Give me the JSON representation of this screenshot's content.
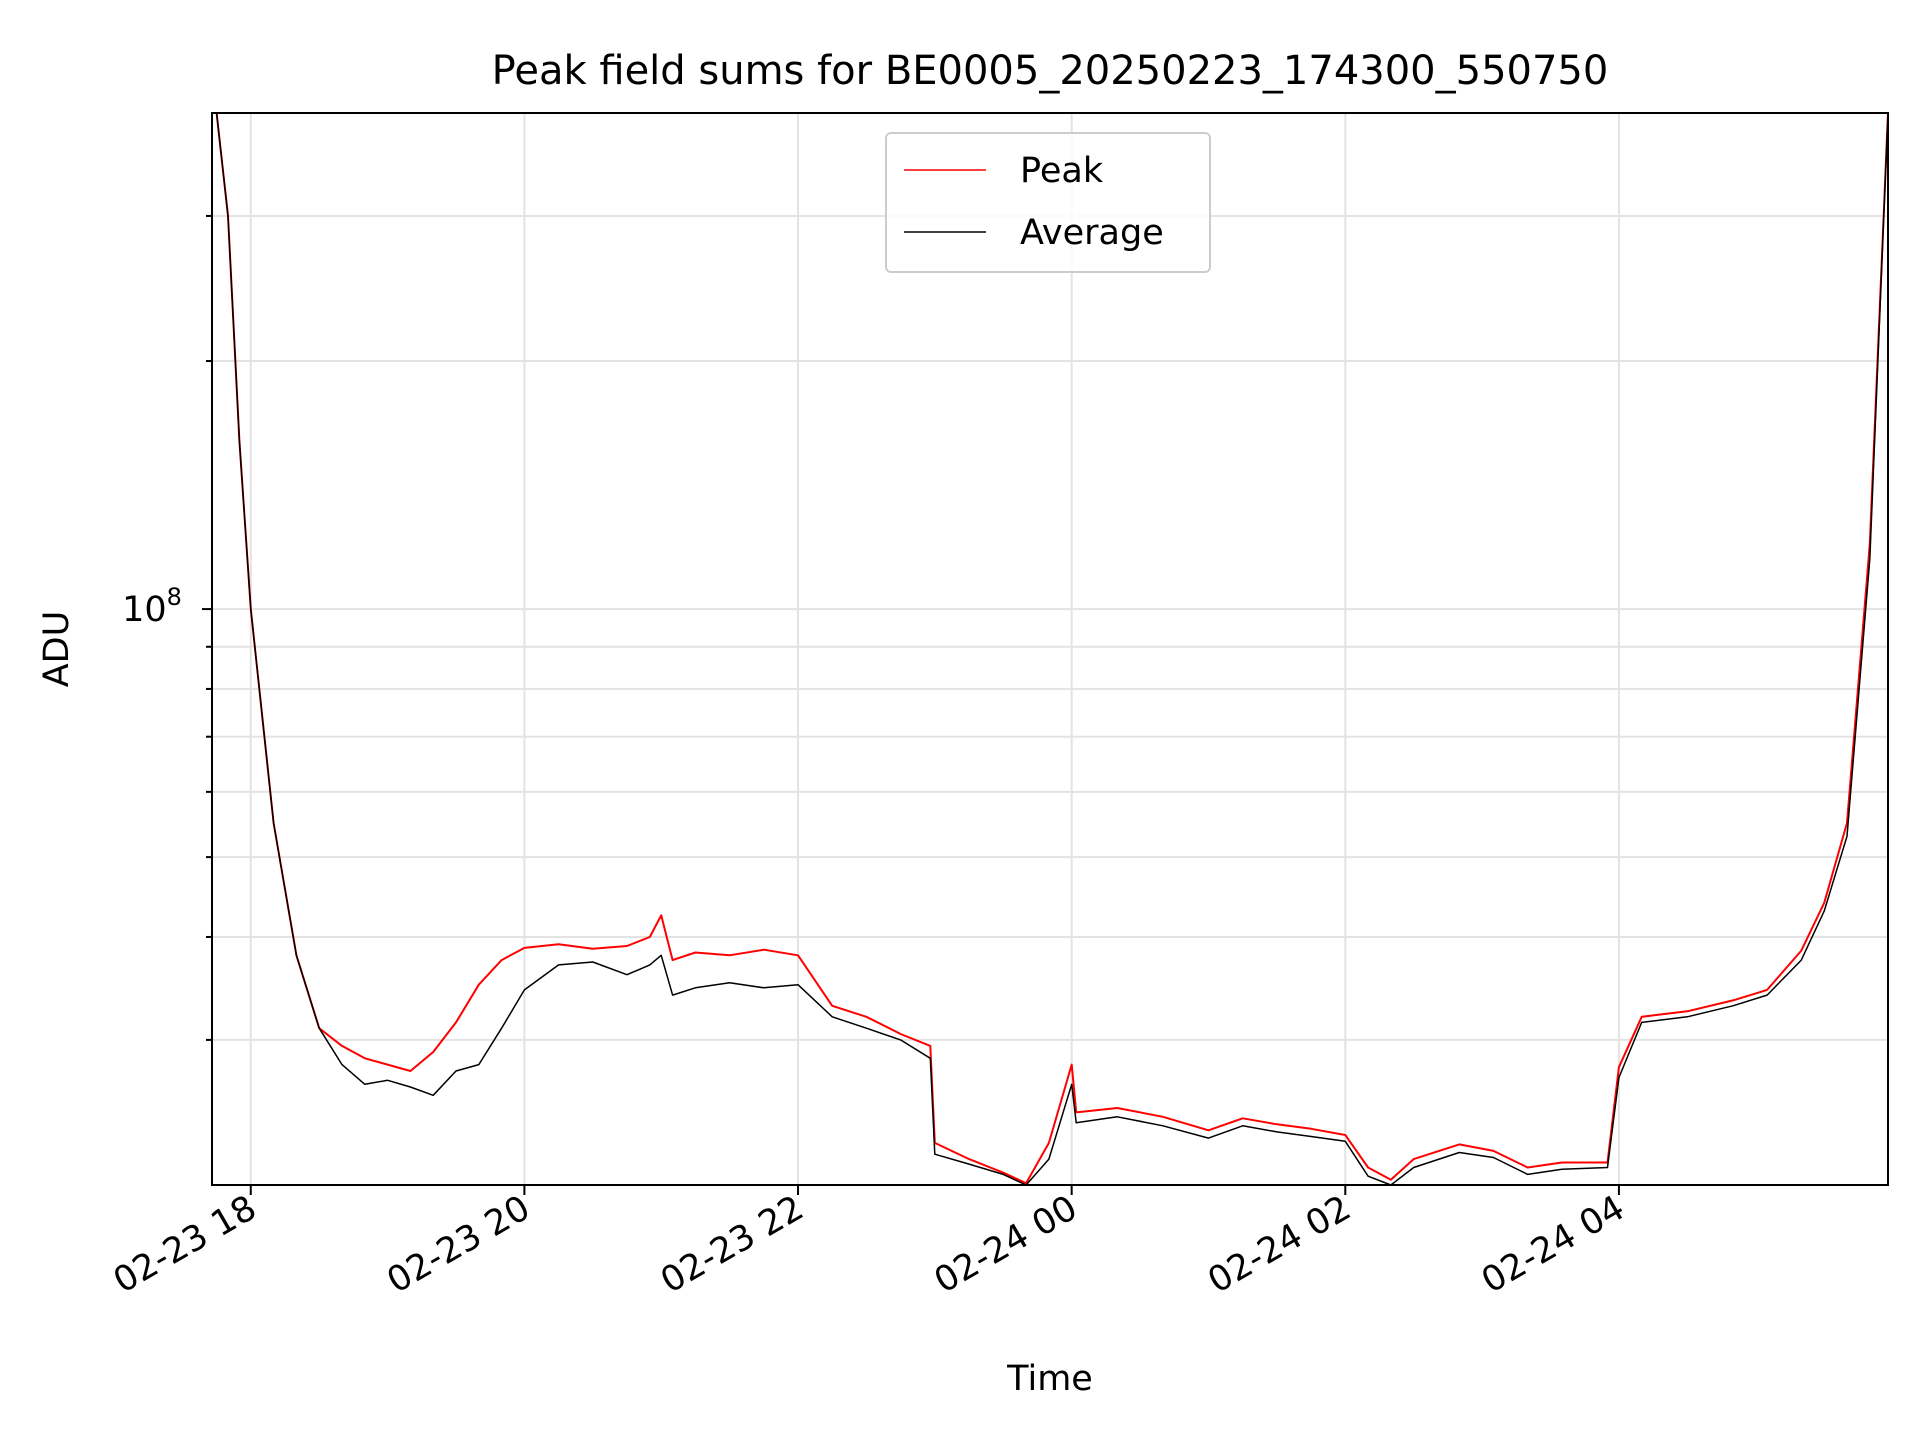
{
  "chart_data": {
    "type": "line",
    "title": "Peak field sums for BE0005_20250223_174300_550750",
    "xlabel": "Time",
    "ylabel": "ADU",
    "xlim": [
      "2025-02-23 17:43",
      "2025-02-24 05:58"
    ],
    "ylim": [
      20000000,
      400000000
    ],
    "y_scale": "log",
    "grid": true,
    "legend_position": "top-center",
    "x_tick_labels": [
      {
        "label": "02-23 18",
        "t": "2025-02-23 18:00"
      },
      {
        "label": "02-23 20",
        "t": "2025-02-23 20:00"
      },
      {
        "label": "02-23 22",
        "t": "2025-02-23 22:00"
      },
      {
        "label": "02-24 00",
        "t": "2025-02-24 00:00"
      },
      {
        "label": "02-24 02",
        "t": "2025-02-24 02:00"
      },
      {
        "label": "02-24 04",
        "t": "2025-02-24 04:00"
      }
    ],
    "y_major_ticks": [
      {
        "value": 100000000,
        "base": "10",
        "exp": "8"
      }
    ],
    "y_minor_ticks": [
      30000000,
      40000000,
      50000000,
      60000000,
      70000000,
      80000000,
      90000000,
      200000000,
      300000000
    ],
    "series": [
      {
        "name": "Peak",
        "color": "#ff0000",
        "x": [
          "2025-02-23 17:43",
          "2025-02-23 17:45",
          "2025-02-23 17:50",
          "2025-02-23 17:55",
          "2025-02-23 18:00",
          "2025-02-23 18:10",
          "2025-02-23 18:20",
          "2025-02-23 18:30",
          "2025-02-23 18:40",
          "2025-02-23 18:50",
          "2025-02-23 19:00",
          "2025-02-23 19:10",
          "2025-02-23 19:20",
          "2025-02-23 19:30",
          "2025-02-23 19:40",
          "2025-02-23 19:50",
          "2025-02-23 20:00",
          "2025-02-23 20:15",
          "2025-02-23 20:30",
          "2025-02-23 20:45",
          "2025-02-23 20:55",
          "2025-02-23 21:00",
          "2025-02-23 21:05",
          "2025-02-23 21:15",
          "2025-02-23 21:30",
          "2025-02-23 21:45",
          "2025-02-23 22:00",
          "2025-02-23 22:15",
          "2025-02-23 22:30",
          "2025-02-23 22:45",
          "2025-02-23 22:58",
          "2025-02-23 23:00",
          "2025-02-23 23:15",
          "2025-02-23 23:30",
          "2025-02-23 23:40",
          "2025-02-23 23:50",
          "2025-02-24 00:00",
          "2025-02-24 00:02",
          "2025-02-24 00:20",
          "2025-02-24 00:40",
          "2025-02-24 01:00",
          "2025-02-24 01:15",
          "2025-02-24 01:30",
          "2025-02-24 01:45",
          "2025-02-24 02:00",
          "2025-02-24 02:10",
          "2025-02-24 02:20",
          "2025-02-24 02:30",
          "2025-02-24 02:50",
          "2025-02-24 03:05",
          "2025-02-24 03:20",
          "2025-02-24 03:35",
          "2025-02-24 03:55",
          "2025-02-24 04:00",
          "2025-02-24 04:10",
          "2025-02-24 04:30",
          "2025-02-24 04:50",
          "2025-02-24 05:05",
          "2025-02-24 05:20",
          "2025-02-24 05:30",
          "2025-02-24 05:40",
          "2025-02-24 05:50",
          "2025-02-24 05:58"
        ],
        "values": [
          400000000,
          400000000,
          300000000,
          160000000,
          100000000,
          55000000,
          38000000,
          31000000,
          29500000,
          28500000,
          28000000,
          27500000,
          29000000,
          31500000,
          35000000,
          37500000,
          38800000,
          39200000,
          38700000,
          39000000,
          40000000,
          42500000,
          37500000,
          38300000,
          38000000,
          38600000,
          38000000,
          33000000,
          32000000,
          30500000,
          29500000,
          22500000,
          21500000,
          20700000,
          20100000,
          22500000,
          28000000,
          24500000,
          24800000,
          24200000,
          23300000,
          24100000,
          23700000,
          23400000,
          23000000,
          21000000,
          20300000,
          21500000,
          22400000,
          22000000,
          21000000,
          21300000,
          21300000,
          27800000,
          32000000,
          32500000,
          33500000,
          34500000,
          38500000,
          44000000,
          55000000,
          120000000,
          400000000
        ]
      },
      {
        "name": "Average",
        "color": "#000000",
        "x": [
          "2025-02-23 17:43",
          "2025-02-23 17:45",
          "2025-02-23 17:50",
          "2025-02-23 17:55",
          "2025-02-23 18:00",
          "2025-02-23 18:10",
          "2025-02-23 18:20",
          "2025-02-23 18:30",
          "2025-02-23 18:40",
          "2025-02-23 18:50",
          "2025-02-23 19:00",
          "2025-02-23 19:10",
          "2025-02-23 19:20",
          "2025-02-23 19:30",
          "2025-02-23 19:40",
          "2025-02-23 19:50",
          "2025-02-23 20:00",
          "2025-02-23 20:15",
          "2025-02-23 20:30",
          "2025-02-23 20:45",
          "2025-02-23 20:55",
          "2025-02-23 21:00",
          "2025-02-23 21:05",
          "2025-02-23 21:15",
          "2025-02-23 21:30",
          "2025-02-23 21:45",
          "2025-02-23 22:00",
          "2025-02-23 22:15",
          "2025-02-23 22:30",
          "2025-02-23 22:45",
          "2025-02-23 22:58",
          "2025-02-23 23:00",
          "2025-02-23 23:15",
          "2025-02-23 23:30",
          "2025-02-23 23:40",
          "2025-02-23 23:50",
          "2025-02-24 00:00",
          "2025-02-24 00:02",
          "2025-02-24 00:20",
          "2025-02-24 00:40",
          "2025-02-24 01:00",
          "2025-02-24 01:15",
          "2025-02-24 01:30",
          "2025-02-24 01:45",
          "2025-02-24 02:00",
          "2025-02-24 02:10",
          "2025-02-24 02:20",
          "2025-02-24 02:30",
          "2025-02-24 02:50",
          "2025-02-24 03:05",
          "2025-02-24 03:20",
          "2025-02-24 03:35",
          "2025-02-24 03:55",
          "2025-02-24 04:00",
          "2025-02-24 04:10",
          "2025-02-24 04:30",
          "2025-02-24 04:50",
          "2025-02-24 05:05",
          "2025-02-24 05:20",
          "2025-02-24 05:30",
          "2025-02-24 05:40",
          "2025-02-24 05:50",
          "2025-02-24 05:58"
        ],
        "values": [
          400000000,
          400000000,
          300000000,
          160000000,
          100000000,
          55000000,
          38000000,
          31000000,
          28000000,
          26500000,
          26800000,
          26300000,
          25700000,
          27500000,
          28000000,
          31000000,
          34500000,
          37000000,
          37300000,
          36000000,
          37000000,
          38000000,
          34000000,
          34700000,
          35200000,
          34700000,
          35000000,
          32000000,
          31000000,
          30000000,
          28500000,
          21800000,
          21200000,
          20600000,
          20000000,
          21500000,
          26500000,
          23800000,
          24200000,
          23600000,
          22800000,
          23600000,
          23200000,
          22900000,
          22600000,
          20500000,
          20000000,
          21000000,
          21900000,
          21600000,
          20600000,
          20900000,
          21000000,
          27000000,
          31500000,
          32000000,
          33000000,
          34000000,
          37500000,
          43000000,
          53000000,
          115000000,
          400000000
        ]
      }
    ]
  }
}
